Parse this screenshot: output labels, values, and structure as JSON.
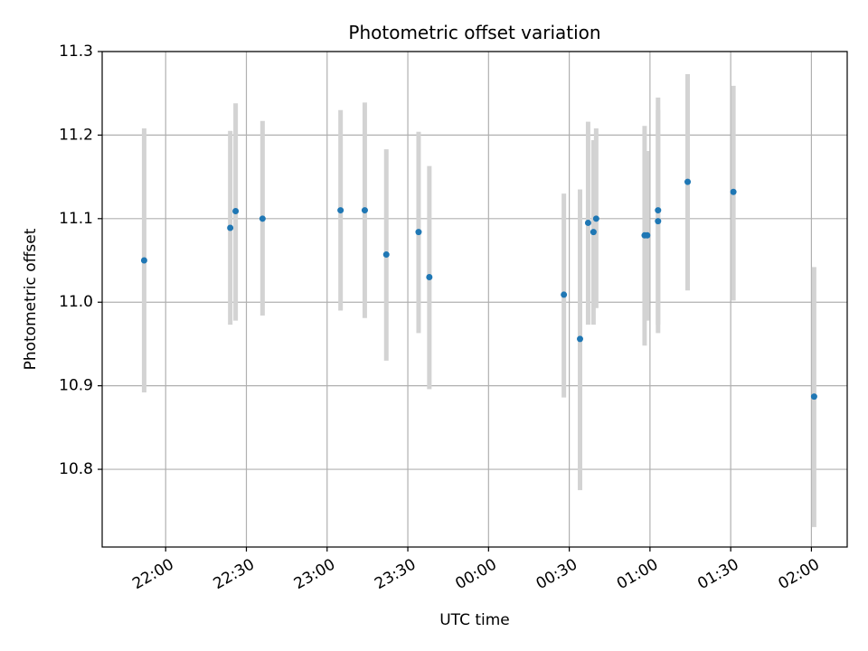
{
  "chart_data": {
    "type": "scatter",
    "title": "Photometric offset variation",
    "xlabel": "UTC time",
    "ylabel": "Photometric offset",
    "x_ticks": [
      {
        "label": "22:00",
        "minutes": 0
      },
      {
        "label": "22:30",
        "minutes": 30
      },
      {
        "label": "23:00",
        "minutes": 60
      },
      {
        "label": "23:30",
        "minutes": 90
      },
      {
        "label": "00:00",
        "minutes": 120
      },
      {
        "label": "00:30",
        "minutes": 150
      },
      {
        "label": "01:00",
        "minutes": 180
      },
      {
        "label": "01:30",
        "minutes": 210
      },
      {
        "label": "02:00",
        "minutes": 240
      }
    ],
    "y_ticks": [
      10.8,
      10.9,
      11.0,
      11.1,
      11.2,
      11.3
    ],
    "xlim_minutes": [
      -23.6,
      253.3
    ],
    "ylim": [
      10.707,
      11.3
    ],
    "grid": true,
    "marker_color": "#1f77b4",
    "errorbar_color": "#d3d3d3",
    "series": [
      {
        "points": [
          {
            "time": "21:52",
            "y": 11.05,
            "y_low": 10.892,
            "y_high": 11.208
          },
          {
            "time": "22:24",
            "y": 11.089,
            "y_low": 10.973,
            "y_high": 11.205
          },
          {
            "time": "22:26",
            "y": 11.109,
            "y_low": 10.978,
            "y_high": 11.238
          },
          {
            "time": "22:36",
            "y": 11.1,
            "y_low": 10.984,
            "y_high": 11.217
          },
          {
            "time": "23:05",
            "y": 11.11,
            "y_low": 10.99,
            "y_high": 11.23
          },
          {
            "time": "23:14",
            "y": 11.11,
            "y_low": 10.981,
            "y_high": 11.239
          },
          {
            "time": "23:22",
            "y": 11.057,
            "y_low": 10.93,
            "y_high": 11.183
          },
          {
            "time": "23:34",
            "y": 11.084,
            "y_low": 10.963,
            "y_high": 11.204
          },
          {
            "time": "23:38",
            "y": 11.03,
            "y_low": 10.896,
            "y_high": 11.163
          },
          {
            "time": "00:28",
            "y": 11.009,
            "y_low": 10.886,
            "y_high": 11.13
          },
          {
            "time": "00:34",
            "y": 10.956,
            "y_low": 10.775,
            "y_high": 11.135
          },
          {
            "time": "00:37",
            "y": 11.095,
            "y_low": 10.973,
            "y_high": 11.216
          },
          {
            "time": "00:39",
            "y": 11.084,
            "y_low": 10.973,
            "y_high": 11.194
          },
          {
            "time": "00:40",
            "y": 11.1,
            "y_low": 10.993,
            "y_high": 11.208
          },
          {
            "time": "00:58",
            "y": 11.08,
            "y_low": 10.948,
            "y_high": 11.211
          },
          {
            "time": "00:59",
            "y": 11.08,
            "y_low": 10.978,
            "y_high": 11.181
          },
          {
            "time": "01:03",
            "y": 11.097,
            "y_low": 10.963,
            "y_high": 11.23
          },
          {
            "time": "01:03",
            "y": 11.11,
            "y_low": 10.973,
            "y_high": 11.245
          },
          {
            "time": "01:14",
            "y": 11.144,
            "y_low": 11.014,
            "y_high": 11.273
          },
          {
            "time": "01:31",
            "y": 11.132,
            "y_low": 11.002,
            "y_high": 11.259
          },
          {
            "time": "02:01",
            "y": 10.887,
            "y_low": 10.731,
            "y_high": 11.042
          }
        ]
      }
    ]
  }
}
